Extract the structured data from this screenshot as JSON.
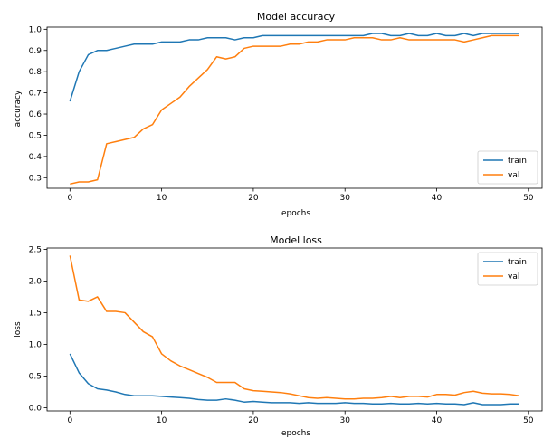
{
  "chart_data": [
    {
      "type": "line",
      "title": "Model accuracy",
      "xlabel": "epochs",
      "ylabel": "accuracy",
      "xlim": [
        -2.5,
        51.5
      ],
      "ylim": [
        0.25,
        1.01
      ],
      "xticks": [
        0,
        10,
        20,
        30,
        40,
        50
      ],
      "yticks": [
        0.3,
        0.4,
        0.5,
        0.6,
        0.7,
        0.8,
        0.9,
        1.0
      ],
      "ytick_labels": [
        "0.3",
        "0.4",
        "0.5",
        "0.6",
        "0.7",
        "0.8",
        "0.9",
        "1.0"
      ],
      "legend": "lower-right",
      "grid": false,
      "x": [
        0,
        1,
        2,
        3,
        4,
        5,
        6,
        7,
        8,
        9,
        10,
        11,
        12,
        13,
        14,
        15,
        16,
        17,
        18,
        19,
        20,
        21,
        22,
        23,
        24,
        25,
        26,
        27,
        28,
        29,
        30,
        31,
        32,
        33,
        34,
        35,
        36,
        37,
        38,
        39,
        40,
        41,
        42,
        43,
        44,
        45,
        46,
        47,
        48,
        49
      ],
      "series": [
        {
          "name": "train",
          "color": "#1f77b4",
          "values": [
            0.66,
            0.8,
            0.88,
            0.9,
            0.9,
            0.91,
            0.92,
            0.93,
            0.93,
            0.93,
            0.94,
            0.94,
            0.94,
            0.95,
            0.95,
            0.96,
            0.96,
            0.96,
            0.95,
            0.96,
            0.96,
            0.97,
            0.97,
            0.97,
            0.97,
            0.97,
            0.97,
            0.97,
            0.97,
            0.97,
            0.97,
            0.97,
            0.97,
            0.98,
            0.98,
            0.97,
            0.97,
            0.98,
            0.97,
            0.97,
            0.98,
            0.97,
            0.97,
            0.98,
            0.97,
            0.98,
            0.98,
            0.98,
            0.98,
            0.98
          ]
        },
        {
          "name": "val",
          "color": "#ff7f0e",
          "values": [
            0.27,
            0.28,
            0.28,
            0.29,
            0.46,
            0.47,
            0.48,
            0.49,
            0.53,
            0.55,
            0.62,
            0.65,
            0.68,
            0.73,
            0.77,
            0.81,
            0.87,
            0.86,
            0.87,
            0.91,
            0.92,
            0.92,
            0.92,
            0.92,
            0.93,
            0.93,
            0.94,
            0.94,
            0.95,
            0.95,
            0.95,
            0.96,
            0.96,
            0.96,
            0.95,
            0.95,
            0.96,
            0.95,
            0.95,
            0.95,
            0.95,
            0.95,
            0.95,
            0.94,
            0.95,
            0.96,
            0.97,
            0.97,
            0.97,
            0.97
          ]
        }
      ]
    },
    {
      "type": "line",
      "title": "Model loss",
      "xlabel": "epochs",
      "ylabel": "loss",
      "xlim": [
        -2.5,
        51.5
      ],
      "ylim": [
        -0.05,
        2.52
      ],
      "xticks": [
        0,
        10,
        20,
        30,
        40,
        50
      ],
      "yticks": [
        0.0,
        0.5,
        1.0,
        1.5,
        2.0,
        2.5
      ],
      "ytick_labels": [
        "0.0",
        "0.5",
        "1.0",
        "1.5",
        "2.0",
        "2.5"
      ],
      "legend": "upper-right",
      "grid": false,
      "x": [
        0,
        1,
        2,
        3,
        4,
        5,
        6,
        7,
        8,
        9,
        10,
        11,
        12,
        13,
        14,
        15,
        16,
        17,
        18,
        19,
        20,
        21,
        22,
        23,
        24,
        25,
        26,
        27,
        28,
        29,
        30,
        31,
        32,
        33,
        34,
        35,
        36,
        37,
        38,
        39,
        40,
        41,
        42,
        43,
        44,
        45,
        46,
        47,
        48,
        49
      ],
      "series": [
        {
          "name": "train",
          "color": "#1f77b4",
          "values": [
            0.85,
            0.55,
            0.38,
            0.3,
            0.28,
            0.25,
            0.21,
            0.19,
            0.19,
            0.19,
            0.18,
            0.17,
            0.16,
            0.15,
            0.13,
            0.12,
            0.12,
            0.14,
            0.12,
            0.09,
            0.1,
            0.09,
            0.08,
            0.08,
            0.08,
            0.07,
            0.08,
            0.07,
            0.07,
            0.07,
            0.08,
            0.07,
            0.07,
            0.06,
            0.06,
            0.07,
            0.06,
            0.06,
            0.07,
            0.06,
            0.07,
            0.06,
            0.06,
            0.05,
            0.08,
            0.05,
            0.05,
            0.05,
            0.06,
            0.06
          ]
        },
        {
          "name": "val",
          "color": "#ff7f0e",
          "values": [
            2.4,
            1.7,
            1.68,
            1.75,
            1.52,
            1.52,
            1.5,
            1.35,
            1.2,
            1.12,
            0.85,
            0.74,
            0.66,
            0.6,
            0.54,
            0.48,
            0.4,
            0.4,
            0.4,
            0.3,
            0.27,
            0.26,
            0.25,
            0.24,
            0.22,
            0.19,
            0.16,
            0.15,
            0.16,
            0.15,
            0.14,
            0.14,
            0.15,
            0.15,
            0.16,
            0.18,
            0.16,
            0.18,
            0.18,
            0.17,
            0.21,
            0.21,
            0.2,
            0.24,
            0.26,
            0.23,
            0.22,
            0.22,
            0.21,
            0.19
          ]
        }
      ]
    }
  ]
}
